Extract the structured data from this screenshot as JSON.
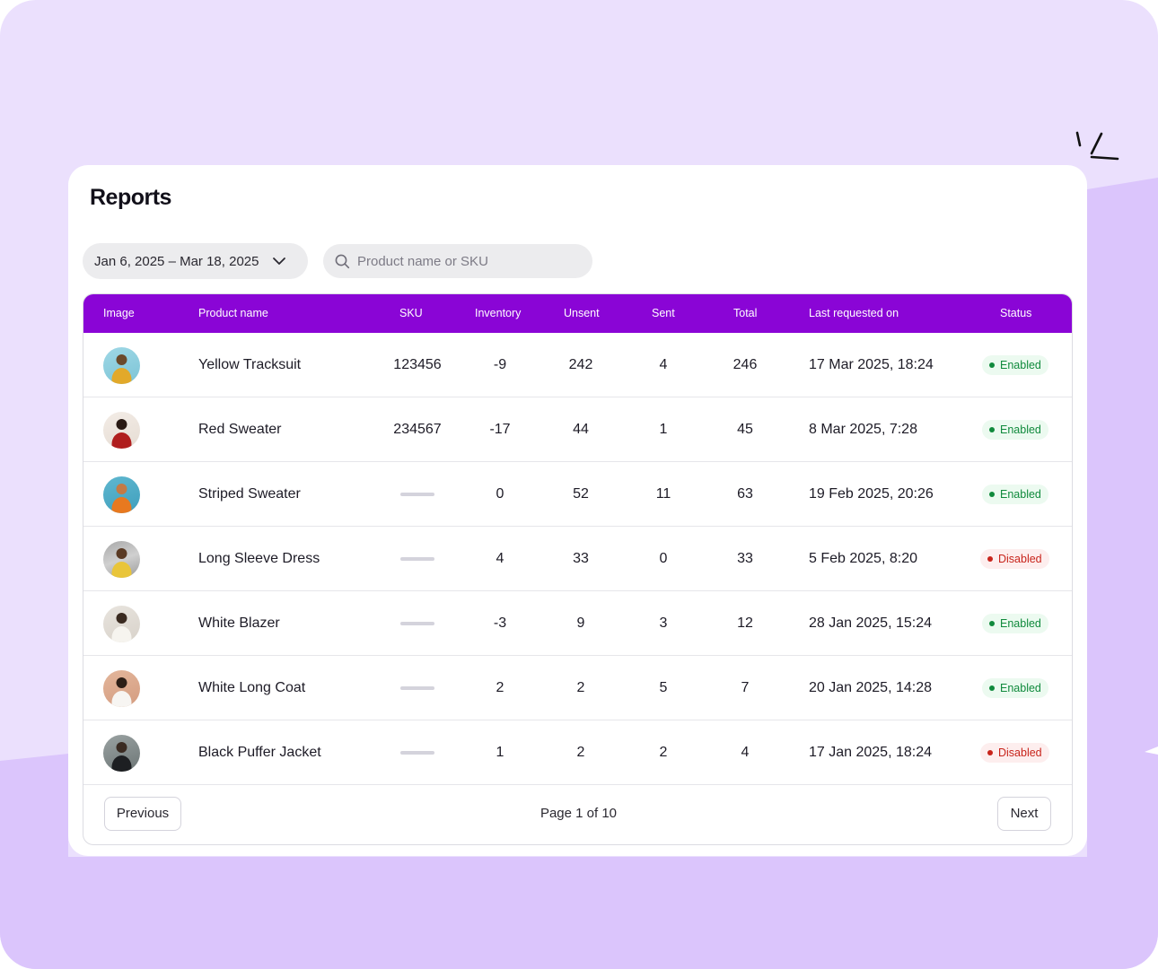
{
  "page": {
    "title": "Reports",
    "accent_color": "#8a05d6",
    "background_color": "#ebe0fd",
    "background_shape_color": "#dbc5fc"
  },
  "filters": {
    "date_range": "Jan 6, 2025 – Mar 18, 2025",
    "date_icon": "chevron-down-icon",
    "search_placeholder": "Product name or SKU",
    "search_value": "",
    "search_icon": "search-icon"
  },
  "table": {
    "headers": {
      "image": "Image",
      "product_name": "Product name",
      "sku": "SKU",
      "inventory": "Inventory",
      "unsent": "Unsent",
      "sent": "Sent",
      "total": "Total",
      "last_requested": "Last requested on",
      "status": "Status"
    },
    "rows": [
      {
        "name": "Yellow Tracksuit",
        "sku": "123456",
        "inventory": "-9",
        "unsent": "242",
        "sent": "4",
        "total": "246",
        "last_requested": "17 Mar 2025, 18:24",
        "status": "Enabled",
        "enabled": true
      },
      {
        "name": "Red Sweater",
        "sku": "234567",
        "inventory": "-17",
        "unsent": "44",
        "sent": "1",
        "total": "45",
        "last_requested": "8 Mar 2025, 7:28",
        "status": "Enabled",
        "enabled": true
      },
      {
        "name": "Striped Sweater",
        "sku": "",
        "inventory": "0",
        "unsent": "52",
        "sent": "11",
        "total": "63",
        "last_requested": "19 Feb 2025, 20:26",
        "status": "Enabled",
        "enabled": true
      },
      {
        "name": "Long Sleeve Dress",
        "sku": "",
        "inventory": "4",
        "unsent": "33",
        "sent": "0",
        "total": "33",
        "last_requested": "5 Feb 2025, 8:20",
        "status": "Disabled",
        "enabled": false
      },
      {
        "name": "White Blazer",
        "sku": "",
        "inventory": "-3",
        "unsent": "9",
        "sent": "3",
        "total": "12",
        "last_requested": "28 Jan 2025, 15:24",
        "status": "Enabled",
        "enabled": true
      },
      {
        "name": "White Long Coat",
        "sku": "",
        "inventory": "2",
        "unsent": "2",
        "sent": "5",
        "total": "7",
        "last_requested": "20 Jan 2025, 14:28",
        "status": "Enabled",
        "enabled": true
      },
      {
        "name": "Black Puffer Jacket",
        "sku": "",
        "inventory": "1",
        "unsent": "2",
        "sent": "2",
        "total": "4",
        "last_requested": "17 Jan 2025, 18:24",
        "status": "Disabled",
        "enabled": false
      }
    ]
  },
  "pagination": {
    "previous_label": "Previous",
    "page_info": "Page 1 of 10",
    "next_label": "Next"
  }
}
